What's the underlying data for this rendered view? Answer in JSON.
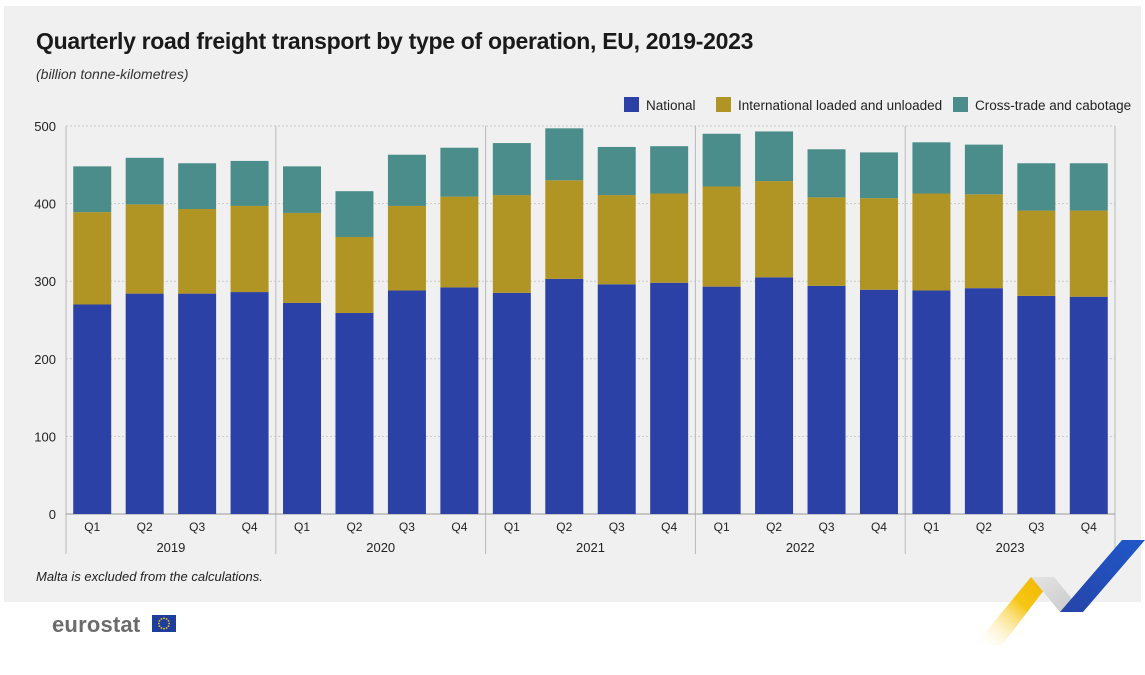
{
  "header": {
    "title": "Quarterly road freight transport by type of operation, EU, 2019-2023",
    "subtitle": "(billion tonne-kilometres)"
  },
  "footer": {
    "note": "Malta is excluded from the calculations.",
    "logo_text": "eurostat"
  },
  "colors": {
    "national": "#2b41a6",
    "international": "#b09424",
    "cross_trade": "#4b8d8a"
  },
  "chart_data": {
    "type": "bar",
    "stacked": true,
    "title": "Quarterly road freight transport by type of operation, EU, 2019-2023",
    "subtitle": "(billion tonne-kilometres)",
    "ylim": [
      0,
      500
    ],
    "yticks": [
      0,
      100,
      200,
      300,
      400,
      500
    ],
    "grid": true,
    "legend_position": "top-right",
    "years": [
      "2019",
      "2020",
      "2021",
      "2022",
      "2023"
    ],
    "quarters": [
      "Q1",
      "Q2",
      "Q3",
      "Q4"
    ],
    "categories": [
      "2019 Q1",
      "2019 Q2",
      "2019 Q3",
      "2019 Q4",
      "2020 Q1",
      "2020 Q2",
      "2020 Q3",
      "2020 Q4",
      "2021 Q1",
      "2021 Q2",
      "2021 Q3",
      "2021 Q4",
      "2022 Q1",
      "2022 Q2",
      "2022 Q3",
      "2022 Q4",
      "2023 Q1",
      "2023 Q2",
      "2023 Q3",
      "2023 Q4"
    ],
    "series": [
      {
        "name": "National",
        "color": "#2b41a6",
        "values": [
          270,
          284,
          284,
          286,
          272,
          259,
          288,
          292,
          285,
          303,
          296,
          298,
          293,
          305,
          294,
          289,
          288,
          291,
          281,
          280
        ]
      },
      {
        "name": "International loaded and unloaded",
        "color": "#b09424",
        "values": [
          119,
          115,
          109,
          111,
          116,
          98,
          109,
          117,
          126,
          127,
          115,
          115,
          129,
          124,
          114,
          118,
          125,
          121,
          110,
          111
        ]
      },
      {
        "name": "Cross-trade and cabotage",
        "color": "#4b8d8a",
        "values": [
          59,
          60,
          59,
          58,
          60,
          59,
          66,
          63,
          67,
          67,
          62,
          61,
          68,
          64,
          62,
          59,
          66,
          64,
          61,
          61
        ]
      }
    ]
  }
}
